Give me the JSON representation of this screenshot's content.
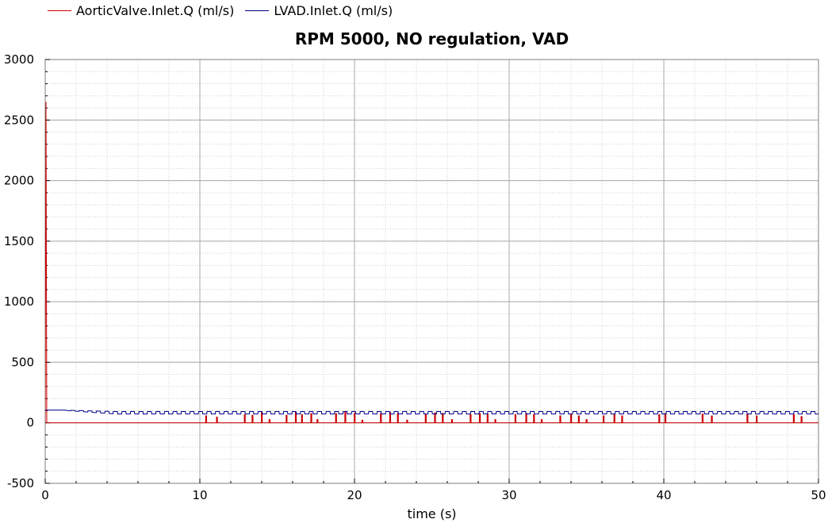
{
  "chart_data": {
    "type": "line",
    "title": "RPM 5000, NO regulation, VAD",
    "xlabel": "time (s)",
    "ylabel": "",
    "xlim": [
      0,
      50
    ],
    "ylim": [
      -500,
      3000
    ],
    "x_ticks": [
      0,
      10,
      20,
      30,
      40,
      50
    ],
    "y_ticks": [
      -500,
      0,
      500,
      1000,
      1500,
      2000,
      2500,
      3000
    ],
    "grid": true,
    "legend_position": "top-left, above plot",
    "series": [
      {
        "name": "AorticValve.Inlet.Q (ml/s)",
        "color": "#cc0000",
        "initial_spike": [
          [
            0,
            0
          ],
          [
            0.05,
            2650
          ],
          [
            0.1,
            0
          ]
        ],
        "baseline": 0,
        "pulses": [
          [
            10.4,
            60
          ],
          [
            11.1,
            50
          ],
          [
            12.9,
            70
          ],
          [
            13.4,
            65
          ],
          [
            14.0,
            90
          ],
          [
            14.5,
            30
          ],
          [
            15.6,
            65
          ],
          [
            16.2,
            90
          ],
          [
            16.6,
            70
          ],
          [
            17.2,
            80
          ],
          [
            17.6,
            30
          ],
          [
            18.8,
            80
          ],
          [
            19.4,
            90
          ],
          [
            20.0,
            80
          ],
          [
            20.5,
            25
          ],
          [
            21.7,
            80
          ],
          [
            22.3,
            90
          ],
          [
            22.8,
            80
          ],
          [
            23.4,
            25
          ],
          [
            24.6,
            70
          ],
          [
            25.2,
            85
          ],
          [
            25.7,
            80
          ],
          [
            26.3,
            30
          ],
          [
            27.5,
            70
          ],
          [
            28.1,
            80
          ],
          [
            28.6,
            75
          ],
          [
            29.1,
            30
          ],
          [
            30.4,
            70
          ],
          [
            31.1,
            80
          ],
          [
            31.6,
            70
          ],
          [
            32.1,
            30
          ],
          [
            33.3,
            60
          ],
          [
            34.0,
            75
          ],
          [
            34.5,
            60
          ],
          [
            35.0,
            30
          ],
          [
            36.1,
            60
          ],
          [
            36.8,
            75
          ],
          [
            37.3,
            60
          ],
          [
            39.7,
            70
          ],
          [
            40.1,
            80
          ],
          [
            42.5,
            75
          ],
          [
            43.1,
            60
          ],
          [
            45.4,
            75
          ],
          [
            46.0,
            60
          ],
          [
            48.4,
            70
          ],
          [
            48.9,
            55
          ]
        ]
      },
      {
        "name": "LVAD.Inlet.Q (ml/s)",
        "color": "#00008b",
        "start_value": 105,
        "steady_mean": 83,
        "oscillation_amplitude": 10,
        "oscillation_period": 0.55,
        "settle_time": 4.5
      }
    ]
  }
}
